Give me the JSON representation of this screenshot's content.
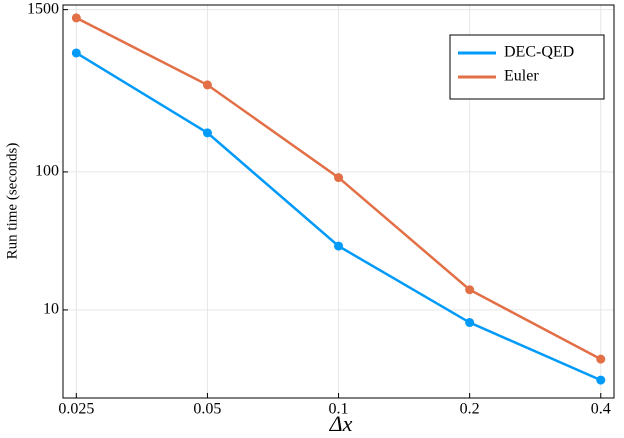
{
  "chart_data": {
    "type": "line",
    "xlabel": "Δx",
    "ylabel": "Run time (seconds)",
    "x": [
      0.025,
      0.05,
      0.1,
      0.2,
      0.4
    ],
    "series": [
      {
        "name": "DEC-QED",
        "color": "#009af9",
        "values": [
          728,
          192,
          29,
          8.1,
          3.1
        ]
      },
      {
        "name": "Euler",
        "color": "#e26f46",
        "values": [
          1306,
          427,
          91,
          14,
          4.4
        ]
      }
    ],
    "xlog": true,
    "ylog": true,
    "xlim": [
      0.0233,
      0.429
    ],
    "xticks": [
      0.025,
      0.05,
      0.1,
      0.2,
      0.4
    ],
    "ylim": [
      2.3,
      1620
    ],
    "yticks": [
      10,
      100,
      1500
    ],
    "grid": true,
    "legend": "top-right"
  }
}
